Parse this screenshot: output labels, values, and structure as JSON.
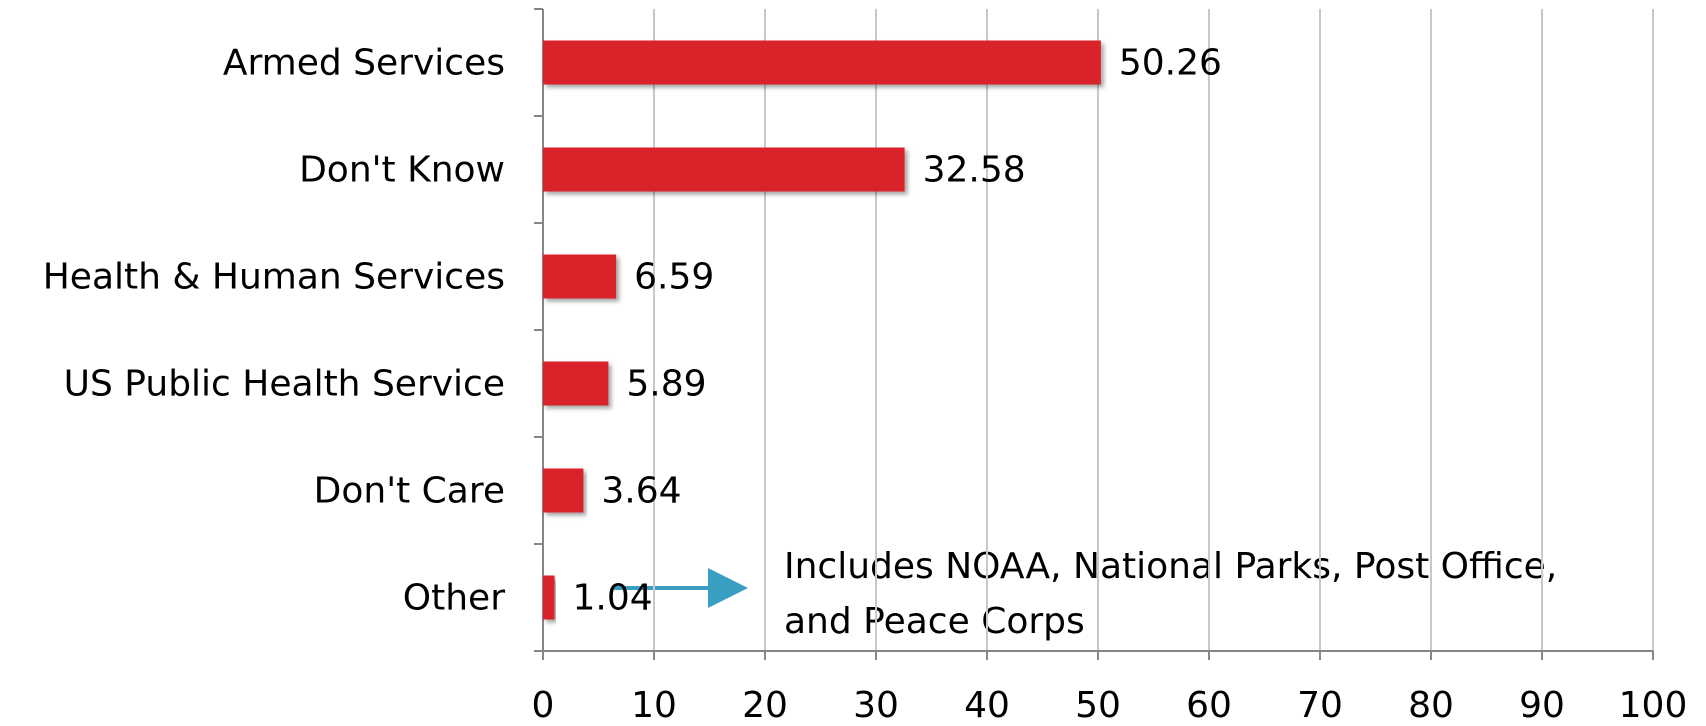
{
  "chart_data": {
    "type": "bar",
    "orientation": "horizontal",
    "categories": [
      "Armed Services",
      "Don't Know",
      "Health & Human Services",
      "US Public Health Service",
      "Don't Care",
      "Other"
    ],
    "values": [
      50.26,
      32.58,
      6.59,
      5.89,
      3.64,
      1.04
    ],
    "color": "#d9202c",
    "xlim": [
      0,
      100
    ],
    "xticks": [
      0,
      10,
      20,
      30,
      40,
      50,
      60,
      70,
      80,
      90,
      100
    ],
    "grid": true,
    "annotation": [
      "Includes NOAA, National Parks, Post Office,",
      "and Peace Corps"
    ]
  }
}
